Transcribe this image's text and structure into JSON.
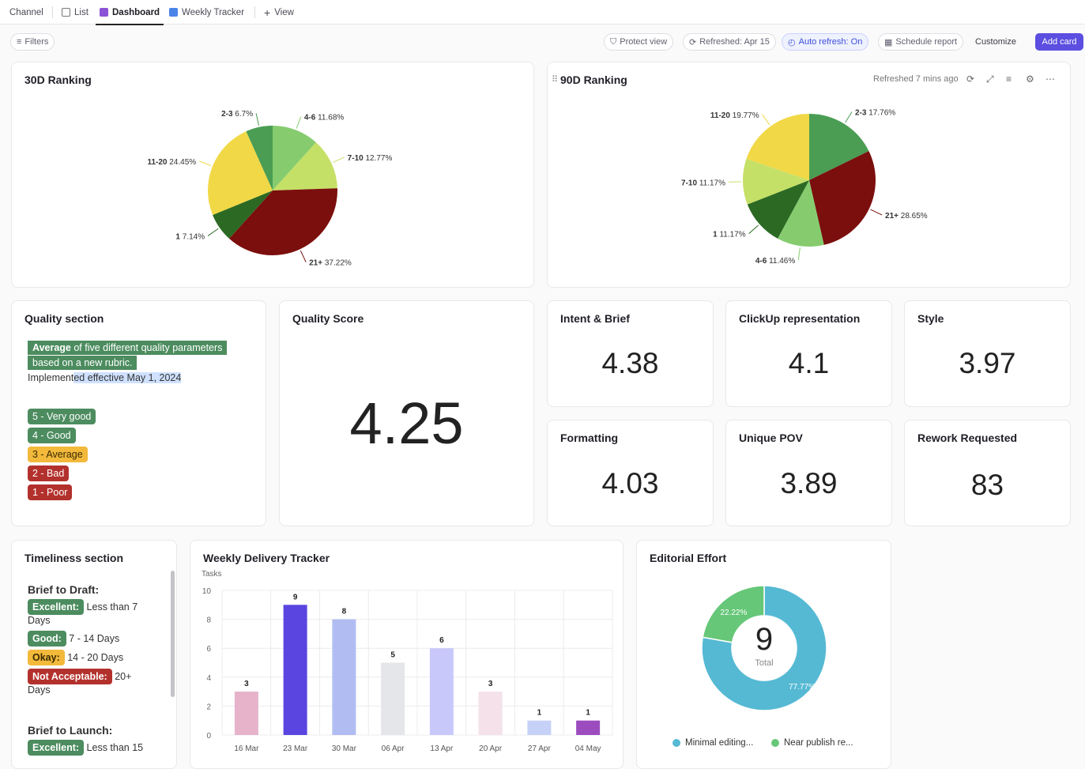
{
  "tabs": {
    "channel": "Channel",
    "list": "List",
    "dashboard": "Dashboard",
    "weekly": "Weekly Tracker",
    "add_view": "View"
  },
  "toolbar": {
    "filters": "Filters",
    "protect": "Protect view",
    "refreshed": "Refreshed: Apr 15",
    "auto_refresh": "Auto refresh: On",
    "schedule": "Schedule report",
    "customize": "Customize",
    "add_card": "Add card"
  },
  "rank30": {
    "title": "30D Ranking",
    "chart_data": {
      "type": "pie",
      "slices": [
        {
          "label": "4-6",
          "value": 11.68,
          "pct": "11.68%",
          "color": "#86cc6f"
        },
        {
          "label": "7-10",
          "value": 12.77,
          "pct": "12.77%",
          "color": "#c5e066"
        },
        {
          "label": "21+",
          "value": 37.22,
          "pct": "37.22%",
          "color": "#7b0f0d"
        },
        {
          "label": "1",
          "value": 7.14,
          "pct": "7.14%",
          "color": "#2c6a24"
        },
        {
          "label": "11-20",
          "value": 24.45,
          "pct": "24.45%",
          "color": "#f1d846"
        },
        {
          "label": "2-3",
          "value": 6.7,
          "pct": "6.7%",
          "color": "#4a9d53"
        }
      ]
    }
  },
  "rank90": {
    "title": "90D Ranking",
    "refreshed": "Refreshed 7 mins ago",
    "chart_data": {
      "type": "pie",
      "slices": [
        {
          "label": "2-3",
          "value": 17.76,
          "pct": "17.76%",
          "color": "#4a9d53"
        },
        {
          "label": "21+",
          "value": 28.65,
          "pct": "28.65%",
          "color": "#7b0f0d"
        },
        {
          "label": "4-6",
          "value": 11.46,
          "pct": "11.46%",
          "color": "#86cc6f"
        },
        {
          "label": "1",
          "value": 11.17,
          "pct": "11.17%",
          "color": "#2c6a24"
        },
        {
          "label": "7-10",
          "value": 11.17,
          "pct": "11.17%",
          "color": "#c5e066"
        },
        {
          "label": "11-20",
          "value": 19.77,
          "pct": "19.77%",
          "color": "#f1d846"
        }
      ]
    }
  },
  "quality": {
    "title": "Quality section",
    "avg_bold": "Average",
    "avg_rest1": " of five different quality parameters",
    "avg_rest2": "based on a new rubric.",
    "impl_a": "Implement",
    "impl_b": "ed effective May 1, 2024",
    "levels": [
      "5 - Very good",
      "4 - Good",
      "3 - Average",
      "2 - Bad",
      "1 - Poor"
    ]
  },
  "quality_score": {
    "title": "Quality Score",
    "value": "4.25"
  },
  "metrics": {
    "intent": {
      "title": "Intent & Brief",
      "value": "4.38"
    },
    "clickup": {
      "title": "ClickUp representation",
      "value": "4.1"
    },
    "style": {
      "title": "Style",
      "value": "3.97"
    },
    "formatting": {
      "title": "Formatting",
      "value": "4.03"
    },
    "pov": {
      "title": "Unique POV",
      "value": "3.89"
    },
    "rework": {
      "title": "Rework Requested",
      "value": "83"
    }
  },
  "timeliness": {
    "title": "Timeliness section",
    "b2d": "Brief to Draft:",
    "excellent": "Excellent:",
    "excellent_txt": "Less than 7",
    "excellent_txt2": "Days",
    "good": "Good:",
    "good_txt": "7 - 14 Days",
    "okay": "Okay:",
    "okay_txt": "14 - 20 Days",
    "na": "Not Acceptable:",
    "na_txt": "20+",
    "na_txt2": "Days",
    "b2l": "Brief to Launch:",
    "excellent2_txt": "Less than 15"
  },
  "weekly": {
    "title": "Weekly Delivery Tracker",
    "chart_data": {
      "type": "bar",
      "ylabel": "Tasks",
      "ylim": [
        0,
        10
      ],
      "yticks": [
        0,
        2,
        4,
        6,
        8,
        10
      ],
      "categories": [
        "16 Mar",
        "23 Mar",
        "30 Mar",
        "06 Apr",
        "13 Apr",
        "20 Apr",
        "27 Apr",
        "04 May"
      ],
      "values": [
        3,
        9,
        8,
        5,
        6,
        3,
        1,
        1
      ],
      "colors": [
        "#e6b3cb",
        "#5a45e0",
        "#b1bdf2",
        "#e5e6ea",
        "#c9c8fb",
        "#f4e1ea",
        "#c6d1f7",
        "#9c4cbf"
      ]
    }
  },
  "editorial": {
    "title": "Editorial Effort",
    "total": "9",
    "total_label": "Total",
    "chart_data": {
      "type": "pie",
      "slices": [
        {
          "label": "Minimal editing...",
          "value": 77.77,
          "pct": "77.77%",
          "color": "#56b9d4"
        },
        {
          "label": "Near publish re...",
          "value": 22.22,
          "pct": "22.22%",
          "color": "#66c778"
        }
      ]
    }
  }
}
